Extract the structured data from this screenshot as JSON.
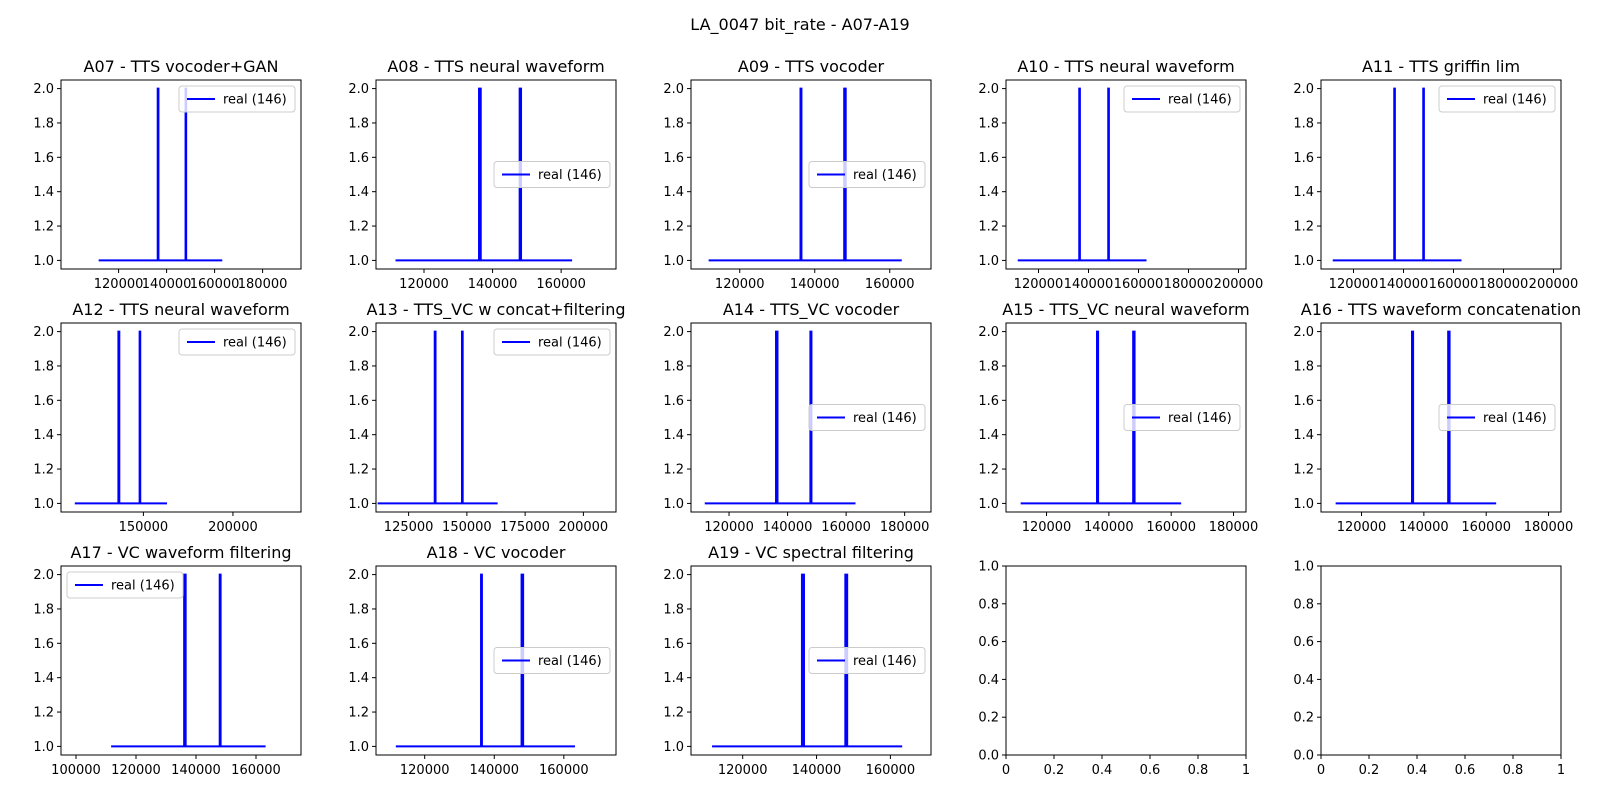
{
  "figure": {
    "suptitle": "LA_0047 bit_rate - A07-A19"
  },
  "chart_data": [
    {
      "type": "line",
      "title": "A07 - TTS vocoder+GAN",
      "xlim": [
        96000,
        196000
      ],
      "ylim": [
        0.95,
        2.05
      ],
      "xticks": [
        120000,
        140000,
        160000,
        180000
      ],
      "yticks": [
        1.0,
        1.2,
        1.4,
        1.6,
        1.8,
        2.0
      ],
      "series": [
        {
          "name": "real (146)",
          "color": "#0000ff",
          "x": [
            111700,
            136300,
            136300,
            136600,
            136600,
            147900,
            147900,
            148150,
            148150,
            163200
          ],
          "y": [
            1,
            1,
            2,
            2,
            1,
            1,
            2,
            2,
            1,
            1
          ]
        }
      ],
      "legend": "upper right"
    },
    {
      "type": "line",
      "title": "A08 - TTS neural waveform",
      "xlim": [
        106000,
        176000
      ],
      "ylim": [
        0.95,
        2.05
      ],
      "xticks": [
        120000,
        140000,
        160000
      ],
      "yticks": [
        1.0,
        1.2,
        1.4,
        1.6,
        1.8,
        2.0
      ],
      "series": [
        {
          "name": "real (146)",
          "color": "#0000ff",
          "x": [
            111700,
            136050,
            136050,
            136550,
            136550,
            147900,
            147900,
            148300,
            148300,
            163200
          ],
          "y": [
            1,
            1,
            2,
            2,
            1,
            1,
            2,
            2,
            1,
            1
          ]
        }
      ],
      "legend": "center right"
    },
    {
      "type": "line",
      "title": "A09 - TTS vocoder",
      "xlim": [
        107000,
        171000
      ],
      "ylim": [
        0.95,
        2.05
      ],
      "xticks": [
        120000,
        140000,
        160000
      ],
      "yticks": [
        1.0,
        1.2,
        1.4,
        1.6,
        1.8,
        2.0
      ],
      "series": [
        {
          "name": "real (146)",
          "color": "#0000ff",
          "x": [
            111700,
            136200,
            136200,
            136450,
            136450,
            147850,
            147850,
            148250,
            148250,
            163200
          ],
          "y": [
            1,
            1,
            2,
            2,
            1,
            1,
            2,
            2,
            1,
            1
          ]
        }
      ],
      "legend": "center right"
    },
    {
      "type": "line",
      "title": "A10 - TTS neural waveform",
      "xlim": [
        107000,
        203000
      ],
      "ylim": [
        0.95,
        2.05
      ],
      "xticks": [
        120000,
        140000,
        160000,
        180000,
        200000
      ],
      "yticks": [
        1.0,
        1.2,
        1.4,
        1.6,
        1.8,
        2.0
      ],
      "series": [
        {
          "name": "real (146)",
          "color": "#0000ff",
          "x": [
            111700,
            136300,
            136300,
            136550,
            136550,
            147900,
            147900,
            148150,
            148150,
            163200
          ],
          "y": [
            1,
            1,
            2,
            2,
            1,
            1,
            2,
            2,
            1,
            1
          ]
        }
      ],
      "legend": "upper right"
    },
    {
      "type": "line",
      "title": "A11 - TTS griffin lim",
      "xlim": [
        107000,
        203000
      ],
      "ylim": [
        0.95,
        2.05
      ],
      "xticks": [
        120000,
        140000,
        160000,
        180000,
        200000
      ],
      "yticks": [
        1.0,
        1.2,
        1.4,
        1.6,
        1.8,
        2.0
      ],
      "series": [
        {
          "name": "real (146)",
          "color": "#0000ff",
          "x": [
            111700,
            136300,
            136300,
            136550,
            136550,
            147900,
            147900,
            148150,
            148150,
            163200
          ],
          "y": [
            1,
            1,
            2,
            2,
            1,
            1,
            2,
            2,
            1,
            1
          ]
        }
      ],
      "legend": "upper right"
    },
    {
      "type": "line",
      "title": "A12 - TTS neural waveform",
      "xlim": [
        104000,
        238000
      ],
      "ylim": [
        0.95,
        2.05
      ],
      "xticks": [
        150000,
        200000
      ],
      "yticks": [
        1.0,
        1.2,
        1.4,
        1.6,
        1.8,
        2.0
      ],
      "series": [
        {
          "name": "real (146)",
          "color": "#0000ff",
          "x": [
            111700,
            136050,
            136050,
            136550,
            136550,
            147900,
            147900,
            148250,
            148250,
            163200
          ],
          "y": [
            1,
            1,
            2,
            2,
            1,
            1,
            2,
            2,
            1,
            1
          ]
        }
      ],
      "legend": "upper right"
    },
    {
      "type": "line",
      "title": "A13 - TTS_VC w concat+filtering",
      "xlim": [
        111000,
        214000
      ],
      "ylim": [
        0.95,
        2.05
      ],
      "xticks": [
        125000,
        150000,
        175000,
        200000
      ],
      "yticks": [
        1.0,
        1.2,
        1.4,
        1.6,
        1.8,
        2.0
      ],
      "series": [
        {
          "name": "real (146)",
          "color": "#0000ff",
          "x": [
            111700,
            136200,
            136200,
            136550,
            136550,
            147900,
            147900,
            148200,
            148200,
            163200
          ],
          "y": [
            1,
            1,
            2,
            2,
            1,
            1,
            2,
            2,
            1,
            1
          ]
        }
      ],
      "legend": "upper right"
    },
    {
      "type": "line",
      "title": "A14 - TTS_VC vocoder",
      "xlim": [
        107000,
        189000
      ],
      "ylim": [
        0.95,
        2.05
      ],
      "xticks": [
        120000,
        140000,
        160000,
        180000
      ],
      "yticks": [
        1.0,
        1.2,
        1.4,
        1.6,
        1.8,
        2.0
      ],
      "series": [
        {
          "name": "real (146)",
          "color": "#0000ff",
          "x": [
            111700,
            136050,
            136050,
            136550,
            136550,
            147800,
            147800,
            148150,
            148150,
            163200
          ],
          "y": [
            1,
            1,
            2,
            2,
            1,
            1,
            2,
            2,
            1,
            1
          ]
        }
      ],
      "legend": "center right"
    },
    {
      "type": "line",
      "title": "A15 - TTS_VC neural waveform",
      "xlim": [
        107000,
        184000
      ],
      "ylim": [
        0.95,
        2.05
      ],
      "xticks": [
        120000,
        140000,
        160000,
        180000
      ],
      "yticks": [
        1.0,
        1.2,
        1.4,
        1.6,
        1.8,
        2.0
      ],
      "series": [
        {
          "name": "real (146)",
          "color": "#0000ff",
          "x": [
            111700,
            136200,
            136200,
            136550,
            136550,
            147800,
            147800,
            148250,
            148250,
            163200
          ],
          "y": [
            1,
            1,
            2,
            2,
            1,
            1,
            2,
            2,
            1,
            1
          ]
        }
      ],
      "legend": "center right"
    },
    {
      "type": "line",
      "title": "A16 - TTS waveform concatenation",
      "xlim": [
        107000,
        184000
      ],
      "ylim": [
        0.95,
        2.05
      ],
      "xticks": [
        120000,
        140000,
        160000,
        180000
      ],
      "yticks": [
        1.0,
        1.2,
        1.4,
        1.6,
        1.8,
        2.0
      ],
      "series": [
        {
          "name": "real (146)",
          "color": "#0000ff",
          "x": [
            111700,
            136200,
            136200,
            136550,
            136550,
            147800,
            147800,
            148250,
            148250,
            163200
          ],
          "y": [
            1,
            1,
            2,
            2,
            1,
            1,
            2,
            2,
            1,
            1
          ]
        }
      ],
      "legend": "center right"
    },
    {
      "type": "line",
      "title": "A17 - VC waveform filtering",
      "xlim": [
        95000,
        175000
      ],
      "ylim": [
        0.95,
        2.05
      ],
      "xticks": [
        100000,
        120000,
        140000,
        160000
      ],
      "yticks": [
        1.0,
        1.2,
        1.4,
        1.6,
        1.8,
        2.0
      ],
      "series": [
        {
          "name": "real (146)",
          "color": "#0000ff",
          "x": [
            111700,
            136050,
            136050,
            136550,
            136550,
            147900,
            147900,
            148200,
            148200,
            163200
          ],
          "y": [
            1,
            1,
            2,
            2,
            1,
            1,
            2,
            2,
            1,
            1
          ]
        }
      ],
      "legend": "upper left"
    },
    {
      "type": "line",
      "title": "A18 - VC vocoder",
      "xlim": [
        106000,
        175000
      ],
      "ylim": [
        0.95,
        2.05
      ],
      "xticks": [
        120000,
        140000,
        160000
      ],
      "yticks": [
        1.0,
        1.2,
        1.4,
        1.6,
        1.8,
        2.0
      ],
      "series": [
        {
          "name": "real (146)",
          "color": "#0000ff",
          "x": [
            111700,
            136200,
            136200,
            136450,
            136450,
            147850,
            147850,
            148300,
            148300,
            163200
          ],
          "y": [
            1,
            1,
            2,
            2,
            1,
            1,
            2,
            2,
            1,
            1
          ]
        }
      ],
      "legend": "center right"
    },
    {
      "type": "line",
      "title": "A19 - VC spectral filtering",
      "xlim": [
        106000,
        171000
      ],
      "ylim": [
        0.95,
        2.05
      ],
      "xticks": [
        120000,
        140000,
        160000
      ],
      "yticks": [
        1.0,
        1.2,
        1.4,
        1.6,
        1.8,
        2.0
      ],
      "series": [
        {
          "name": "real (146)",
          "color": "#0000ff",
          "x": [
            111700,
            136050,
            136050,
            136600,
            136600,
            147800,
            147800,
            148300,
            148300,
            163200
          ],
          "y": [
            1,
            1,
            2,
            2,
            1,
            1,
            2,
            2,
            1,
            1
          ]
        }
      ],
      "legend": "center right"
    },
    {
      "type": "line",
      "title": "",
      "xlim": [
        0,
        1
      ],
      "ylim": [
        0,
        1
      ],
      "xticks": [
        0.0,
        0.2,
        0.4,
        0.6,
        0.8,
        1.0
      ],
      "yticks": [
        0.0,
        0.2,
        0.4,
        0.6,
        0.8,
        1.0
      ],
      "series": []
    },
    {
      "type": "line",
      "title": "",
      "xlim": [
        0,
        1
      ],
      "ylim": [
        0,
        1
      ],
      "xticks": [
        0.0,
        0.2,
        0.4,
        0.6,
        0.8,
        1.0
      ],
      "yticks": [
        0.0,
        0.2,
        0.4,
        0.6,
        0.8,
        1.0
      ],
      "series": []
    }
  ]
}
